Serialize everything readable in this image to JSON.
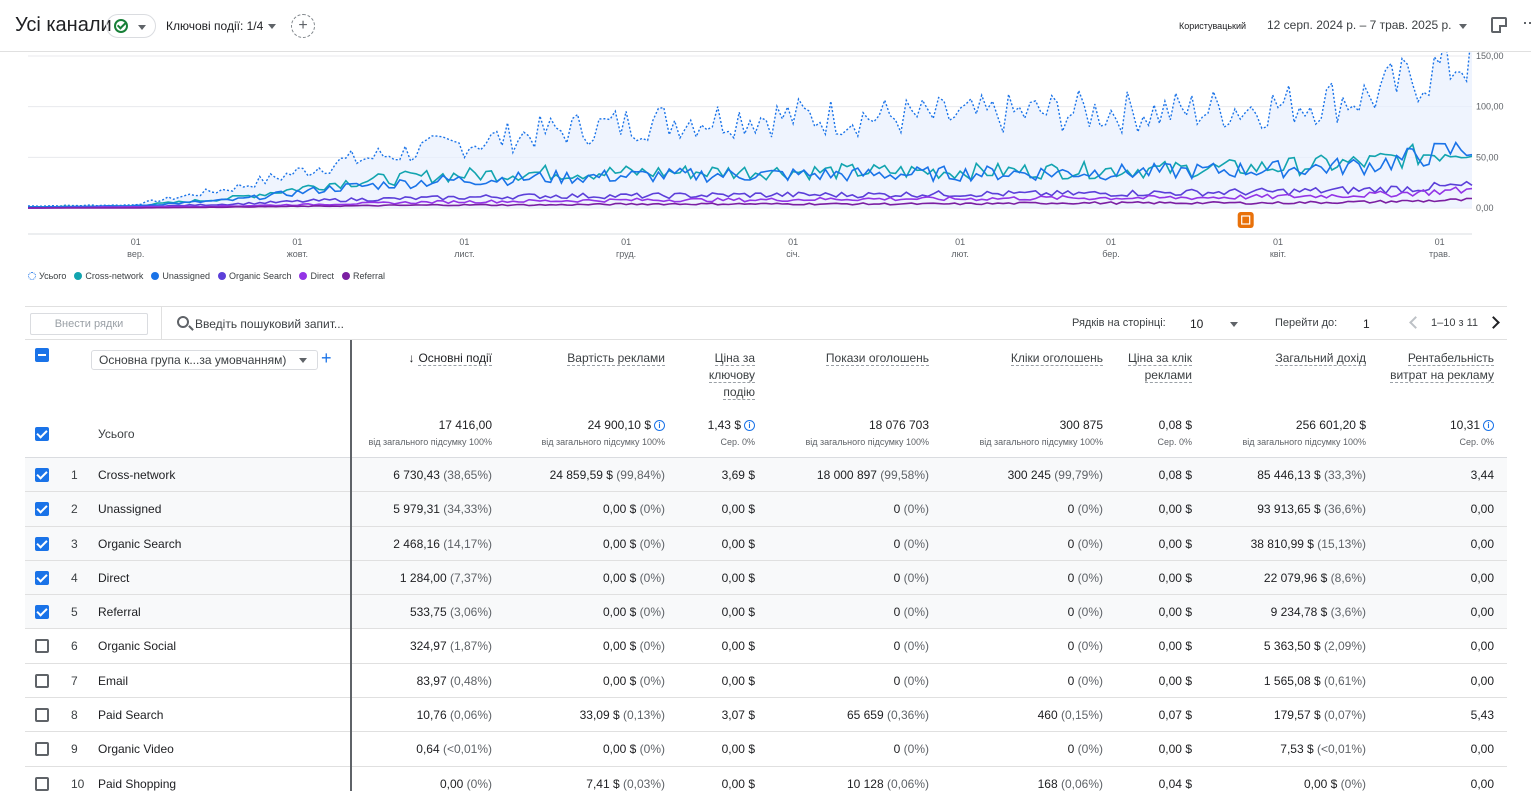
{
  "header": {
    "title": "Усі канали",
    "key_events": "Ключові події: 1/4",
    "add_compare": "+",
    "custom_label": "Користувацький",
    "date_range": "12 серп. 2024 р. – 7 трав. 2025 р."
  },
  "chart_data": {
    "type": "line",
    "x_labels": [
      [
        "01",
        "вер."
      ],
      [
        "01",
        "жовт."
      ],
      [
        "01",
        "лист."
      ],
      [
        "01",
        "груд."
      ],
      [
        "01",
        "січ."
      ],
      [
        "01",
        "лют."
      ],
      [
        "01",
        "бер."
      ],
      [
        "01",
        "квіт."
      ],
      [
        "01",
        "трав."
      ]
    ],
    "y_ticks": [
      "150,00",
      "100,00",
      "50,00",
      "0,00"
    ],
    "ylim": [
      0,
      150
    ],
    "x_range": [
      "2024-08-12",
      "2025-05-07"
    ],
    "grid": true,
    "legend_position": "bottom-left",
    "annotation_icon": "annotation-marker-icon",
    "series": [
      {
        "name": "Усього",
        "color": "#1a73e8",
        "style": "dotted",
        "trend": [
          2,
          3,
          20,
          45,
          60,
          75,
          85,
          90,
          90,
          90,
          95,
          95,
          100,
          110,
          150
        ]
      },
      {
        "name": "Cross-network",
        "color": "#12a4af",
        "style": "solid",
        "trend": [
          1,
          2,
          10,
          25,
          32,
          35,
          35,
          36,
          36,
          36,
          37,
          38,
          40,
          45,
          60
        ]
      },
      {
        "name": "Unassigned",
        "color": "#1a73e8",
        "style": "solid",
        "trend": [
          1,
          2,
          8,
          20,
          27,
          30,
          32,
          33,
          33,
          34,
          35,
          36,
          38,
          42,
          60
        ]
      },
      {
        "name": "Organic Search",
        "color": "#5b3fd9",
        "style": "solid",
        "trend": [
          0,
          1,
          4,
          8,
          10,
          12,
          12,
          13,
          13,
          14,
          14,
          15,
          16,
          18,
          22
        ]
      },
      {
        "name": "Direct",
        "color": "#9334e6",
        "style": "solid",
        "trend": [
          0,
          1,
          2,
          4,
          6,
          7,
          8,
          8,
          9,
          9,
          10,
          10,
          11,
          13,
          18
        ]
      },
      {
        "name": "Referral",
        "color": "#7b1fa2",
        "style": "solid",
        "trend": [
          0,
          0,
          1,
          2,
          3,
          3,
          4,
          4,
          4,
          4,
          5,
          5,
          5,
          6,
          8
        ]
      }
    ]
  },
  "colors": {
    "accent": "#1a73e8",
    "grid": "#e8eaed"
  },
  "toolbar": {
    "plot_rows": "Внести рядки",
    "search_placeholder": "Введіть пошуковий запит...",
    "rows_label": "Рядків на сторінці:",
    "rows_value": "10",
    "goto_label": "Перейти до:",
    "goto_value": "1",
    "page_range": "1–10 з 11"
  },
  "table": {
    "dimension": "Основна група к...за умовчанням)",
    "dimension_add": "+",
    "total_label": "Усього",
    "columns": [
      {
        "label": "Основні події",
        "total": "17 416,00",
        "sub": "100% від загального підсумку",
        "info": false
      },
      {
        "label": "Вартість реклами",
        "total": "24 900,10 $",
        "sub": "100% від загального підсумку",
        "info": true
      },
      {
        "label": "Ціна за ключову подію",
        "total": "1,43 $",
        "sub": "Сер. 0%",
        "info": true
      },
      {
        "label": "Покази оголошень",
        "total": "18 076 703",
        "sub": "100% від загального підсумку",
        "info": false
      },
      {
        "label": "Кліки оголошень",
        "total": "300 875",
        "sub": "100% від загального підсумку",
        "info": false
      },
      {
        "label": "Ціна за клік реклами",
        "total": "0,08 $",
        "sub": "Сер. 0%",
        "info": false
      },
      {
        "label": "Загальний дохід",
        "total": "256 601,20 $",
        "sub": "100% від загального підсумку",
        "info": false
      },
      {
        "label": "Рентабельність витрат на рекламу",
        "total": "10,31",
        "sub": "Сер. 0%",
        "info": true
      }
    ],
    "rows": [
      {
        "idx": "1",
        "name": "Cross-network",
        "checked": true,
        "cells": [
          [
            "6 730,43",
            "(38,65%)"
          ],
          [
            "24 859,59 $",
            "(99,84%)"
          ],
          [
            "3,69 $",
            ""
          ],
          [
            "18 000 897",
            "(99,58%)"
          ],
          [
            "300 245",
            "(99,79%)"
          ],
          [
            "0,08 $",
            ""
          ],
          [
            "85 446,13 $",
            "(33,3%)"
          ],
          [
            "3,44",
            ""
          ]
        ]
      },
      {
        "idx": "2",
        "name": "Unassigned",
        "checked": true,
        "cells": [
          [
            "5 979,31",
            "(34,33%)"
          ],
          [
            "0,00 $",
            "(0%)"
          ],
          [
            "0,00 $",
            ""
          ],
          [
            "0",
            "(0%)"
          ],
          [
            "0",
            "(0%)"
          ],
          [
            "0,00 $",
            ""
          ],
          [
            "93 913,65 $",
            "(36,6%)"
          ],
          [
            "0,00",
            ""
          ]
        ]
      },
      {
        "idx": "3",
        "name": "Organic Search",
        "checked": true,
        "cells": [
          [
            "2 468,16",
            "(14,17%)"
          ],
          [
            "0,00 $",
            "(0%)"
          ],
          [
            "0,00 $",
            ""
          ],
          [
            "0",
            "(0%)"
          ],
          [
            "0",
            "(0%)"
          ],
          [
            "0,00 $",
            ""
          ],
          [
            "38 810,99 $",
            "(15,13%)"
          ],
          [
            "0,00",
            ""
          ]
        ]
      },
      {
        "idx": "4",
        "name": "Direct",
        "checked": true,
        "cells": [
          [
            "1 284,00",
            "(7,37%)"
          ],
          [
            "0,00 $",
            "(0%)"
          ],
          [
            "0,00 $",
            ""
          ],
          [
            "0",
            "(0%)"
          ],
          [
            "0",
            "(0%)"
          ],
          [
            "0,00 $",
            ""
          ],
          [
            "22 079,96 $",
            "(8,6%)"
          ],
          [
            "0,00",
            ""
          ]
        ]
      },
      {
        "idx": "5",
        "name": "Referral",
        "checked": true,
        "cells": [
          [
            "533,75",
            "(3,06%)"
          ],
          [
            "0,00 $",
            "(0%)"
          ],
          [
            "0,00 $",
            ""
          ],
          [
            "0",
            "(0%)"
          ],
          [
            "0",
            "(0%)"
          ],
          [
            "0,00 $",
            ""
          ],
          [
            "9 234,78 $",
            "(3,6%)"
          ],
          [
            "0,00",
            ""
          ]
        ]
      },
      {
        "idx": "6",
        "name": "Organic Social",
        "checked": false,
        "cells": [
          [
            "324,97",
            "(1,87%)"
          ],
          [
            "0,00 $",
            "(0%)"
          ],
          [
            "0,00 $",
            ""
          ],
          [
            "0",
            "(0%)"
          ],
          [
            "0",
            "(0%)"
          ],
          [
            "0,00 $",
            ""
          ],
          [
            "5 363,50 $",
            "(2,09%)"
          ],
          [
            "0,00",
            ""
          ]
        ]
      },
      {
        "idx": "7",
        "name": "Email",
        "checked": false,
        "cells": [
          [
            "83,97",
            "(0,48%)"
          ],
          [
            "0,00 $",
            "(0%)"
          ],
          [
            "0,00 $",
            ""
          ],
          [
            "0",
            "(0%)"
          ],
          [
            "0",
            "(0%)"
          ],
          [
            "0,00 $",
            ""
          ],
          [
            "1 565,08 $",
            "(0,61%)"
          ],
          [
            "0,00",
            ""
          ]
        ]
      },
      {
        "idx": "8",
        "name": "Paid Search",
        "checked": false,
        "cells": [
          [
            "10,76",
            "(0,06%)"
          ],
          [
            "33,09 $",
            "(0,13%)"
          ],
          [
            "3,07 $",
            ""
          ],
          [
            "65 659",
            "(0,36%)"
          ],
          [
            "460",
            "(0,15%)"
          ],
          [
            "0,07 $",
            ""
          ],
          [
            "179,57 $",
            "(0,07%)"
          ],
          [
            "5,43",
            ""
          ]
        ]
      },
      {
        "idx": "9",
        "name": "Organic Video",
        "checked": false,
        "cells": [
          [
            "0,64",
            "(<0,01%)"
          ],
          [
            "0,00 $",
            "(0%)"
          ],
          [
            "0,00 $",
            ""
          ],
          [
            "0",
            "(0%)"
          ],
          [
            "0",
            "(0%)"
          ],
          [
            "0,00 $",
            ""
          ],
          [
            "7,53 $",
            "(<0,01%)"
          ],
          [
            "0,00",
            ""
          ]
        ]
      },
      {
        "idx": "10",
        "name": "Paid Shopping",
        "checked": false,
        "cells": [
          [
            "0,00",
            "(0%)"
          ],
          [
            "7,41 $",
            "(0,03%)"
          ],
          [
            "0,00 $",
            ""
          ],
          [
            "10 128",
            "(0,06%)"
          ],
          [
            "168",
            "(0,06%)"
          ],
          [
            "0,04 $",
            ""
          ],
          [
            "0,00 $",
            "(0%)"
          ],
          [
            "0,00",
            ""
          ]
        ]
      }
    ]
  }
}
